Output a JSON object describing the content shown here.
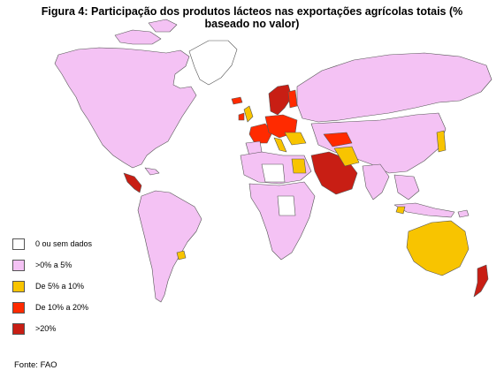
{
  "title": {
    "line1": "Figura 4: Participação dos produtos lácteos nas exportações agrícolas totais (%",
    "line2": "baseado no valor)"
  },
  "legend": [
    {
      "label": "0 ou sem dados",
      "color": "#ffffff"
    },
    {
      "label": ">0% a 5%",
      "color": "#f4c2f4"
    },
    {
      "label": "De 5% a 10%",
      "color": "#f8c400"
    },
    {
      "label": "De 10% a 20%",
      "color": "#ff2a00"
    },
    {
      "label": ">20%",
      "color": "#c81e14"
    }
  ],
  "source": "Fonte: FAO",
  "colors": {
    "border": "#555555",
    "ocean": "#ffffff"
  }
}
